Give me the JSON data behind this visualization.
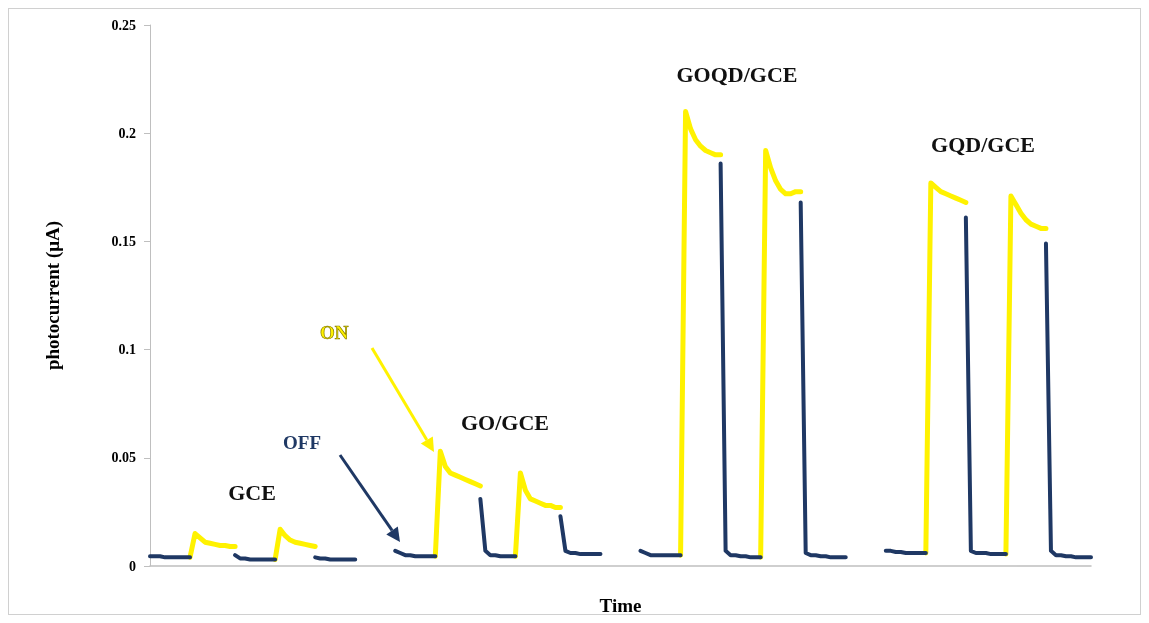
{
  "chart_data": {
    "type": "line",
    "xlabel": "Time",
    "ylabel": "photocurrent (μA)",
    "categories": [
      null,
      null,
      null,
      null,
      null,
      null,
      null,
      null,
      null,
      null,
      null,
      null,
      null,
      null,
      null,
      null,
      null,
      null,
      null,
      null,
      null,
      null,
      null,
      null,
      null,
      null,
      null,
      null,
      null,
      null,
      null,
      null,
      null,
      null,
      null,
      null,
      null,
      null,
      null,
      null,
      null,
      null,
      null,
      null,
      null,
      null,
      null,
      null,
      null,
      null,
      null,
      null,
      null,
      null,
      null,
      null,
      null,
      null,
      null,
      null,
      null,
      null,
      null,
      null,
      null,
      null,
      null,
      null,
      null,
      null,
      null,
      null,
      null,
      null,
      null,
      null,
      null,
      null,
      null,
      null,
      null,
      null,
      null,
      null,
      null,
      null,
      null,
      null,
      null,
      null,
      null,
      null,
      null,
      null,
      null,
      null,
      null,
      null,
      null,
      null,
      null,
      null,
      null,
      null,
      null,
      null,
      null,
      null,
      null,
      null,
      null,
      null,
      null,
      null,
      null,
      null,
      null,
      null,
      null,
      null,
      null,
      null,
      null,
      null,
      null,
      null,
      null,
      null,
      null,
      null,
      null,
      null,
      null,
      null,
      null,
      null,
      null,
      null,
      null,
      null,
      null,
      null,
      null,
      null,
      null,
      null,
      null,
      null,
      null,
      null,
      null,
      null,
      null,
      null,
      null,
      null,
      null,
      null,
      null,
      null,
      null,
      null,
      null,
      null,
      null,
      null,
      null,
      null,
      null,
      null,
      null,
      null,
      null,
      null,
      null,
      null,
      null,
      null,
      null,
      null,
      null,
      null,
      null,
      null,
      null,
      null,
      null,
      null,
      null
    ],
    "ylim": [
      0,
      0.25
    ],
    "yticks": [
      0,
      0.05,
      0.1,
      0.15,
      0.2,
      0.25
    ],
    "tick_labels": "y",
    "grid": false,
    "legend": false,
    "line_style": "solid",
    "series": [
      {
        "name": "ON",
        "color": "#fff200",
        "values": [
          null,
          null,
          null,
          null,
          null,
          null,
          null,
          null,
          0.004,
          0.015,
          0.013,
          0.011,
          0.0105,
          0.01,
          0.0095,
          0.0095,
          0.009,
          0.009,
          null,
          null,
          null,
          null,
          null,
          null,
          null,
          0.003,
          0.017,
          0.014,
          0.012,
          0.011,
          0.0105,
          0.01,
          0.0095,
          0.009,
          null,
          null,
          null,
          null,
          null,
          null,
          null,
          null,
          null,
          null,
          null,
          null,
          null,
          null,
          null,
          null,
          null,
          null,
          null,
          null,
          null,
          null,
          null,
          0.0045,
          0.053,
          0.046,
          0.043,
          0.042,
          0.041,
          0.04,
          0.039,
          0.038,
          0.037,
          null,
          null,
          null,
          null,
          null,
          null,
          0.0045,
          0.043,
          0.035,
          0.031,
          0.03,
          0.029,
          0.028,
          0.028,
          0.027,
          0.027,
          null,
          null,
          null,
          null,
          null,
          null,
          null,
          null,
          null,
          null,
          null,
          null,
          null,
          null,
          null,
          null,
          null,
          null,
          null,
          null,
          null,
          null,
          null,
          0.005,
          0.21,
          0.202,
          0.197,
          0.194,
          0.192,
          0.191,
          0.19,
          0.19,
          null,
          null,
          null,
          null,
          null,
          null,
          null,
          0.004,
          0.192,
          0.184,
          0.178,
          0.174,
          0.172,
          0.172,
          0.173,
          0.173,
          null,
          null,
          null,
          null,
          null,
          null,
          null,
          null,
          null,
          null,
          null,
          null,
          null,
          null,
          null,
          null,
          null,
          null,
          null,
          null,
          null,
          null,
          null,
          null,
          0.006,
          0.177,
          0.175,
          0.173,
          0.172,
          0.171,
          0.17,
          0.169,
          0.168,
          null,
          null,
          null,
          null,
          null,
          null,
          null,
          0.0055,
          0.171,
          0.167,
          0.163,
          0.16,
          0.158,
          0.157,
          0.156,
          0.156,
          null,
          null,
          null,
          null,
          null,
          null,
          null,
          null,
          null
        ]
      },
      {
        "name": "OFF",
        "color": "#1f3864",
        "values": [
          0.0045,
          0.0045,
          0.0045,
          0.004,
          0.004,
          0.004,
          0.004,
          0.004,
          0.004,
          null,
          null,
          null,
          null,
          null,
          null,
          null,
          null,
          0.005,
          0.0035,
          0.0035,
          0.003,
          0.003,
          0.003,
          0.003,
          0.003,
          0.003,
          null,
          null,
          null,
          null,
          null,
          null,
          null,
          0.004,
          0.0035,
          0.0035,
          0.003,
          0.003,
          0.003,
          0.003,
          0.003,
          0.003,
          null,
          null,
          null,
          null,
          null,
          null,
          null,
          0.007,
          0.006,
          0.005,
          0.005,
          0.0045,
          0.0045,
          0.0045,
          0.0045,
          0.0045,
          null,
          null,
          null,
          null,
          null,
          null,
          null,
          null,
          0.031,
          0.007,
          0.005,
          0.005,
          0.0045,
          0.0045,
          0.0045,
          0.0045,
          null,
          null,
          null,
          null,
          null,
          null,
          null,
          null,
          0.023,
          0.007,
          0.006,
          0.006,
          0.0055,
          0.0055,
          0.0055,
          0.0055,
          0.0055,
          null,
          null,
          null,
          null,
          null,
          null,
          null,
          0.007,
          0.006,
          0.005,
          0.005,
          0.005,
          0.005,
          0.005,
          0.005,
          0.005,
          null,
          null,
          null,
          null,
          null,
          null,
          null,
          0.186,
          0.007,
          0.005,
          0.005,
          0.0045,
          0.0045,
          0.004,
          0.004,
          0.004,
          null,
          null,
          null,
          null,
          null,
          null,
          null,
          0.168,
          0.006,
          0.005,
          0.005,
          0.0045,
          0.0045,
          0.004,
          0.004,
          0.004,
          0.004,
          null,
          null,
          null,
          null,
          null,
          null,
          null,
          0.007,
          0.007,
          0.0065,
          0.0065,
          0.006,
          0.006,
          0.006,
          0.006,
          0.006,
          null,
          null,
          null,
          null,
          null,
          null,
          null,
          0.161,
          0.007,
          0.006,
          0.006,
          0.006,
          0.0055,
          0.0055,
          0.0055,
          0.0055,
          null,
          null,
          null,
          null,
          null,
          null,
          null,
          0.149,
          0.007,
          0.005,
          0.005,
          0.0045,
          0.0045,
          0.004,
          0.004,
          0.004,
          0.004
        ]
      }
    ],
    "annotations": [
      "GCE",
      "GO/GCE",
      "GOQD/GCE",
      "GQD/GCE"
    ]
  }
}
